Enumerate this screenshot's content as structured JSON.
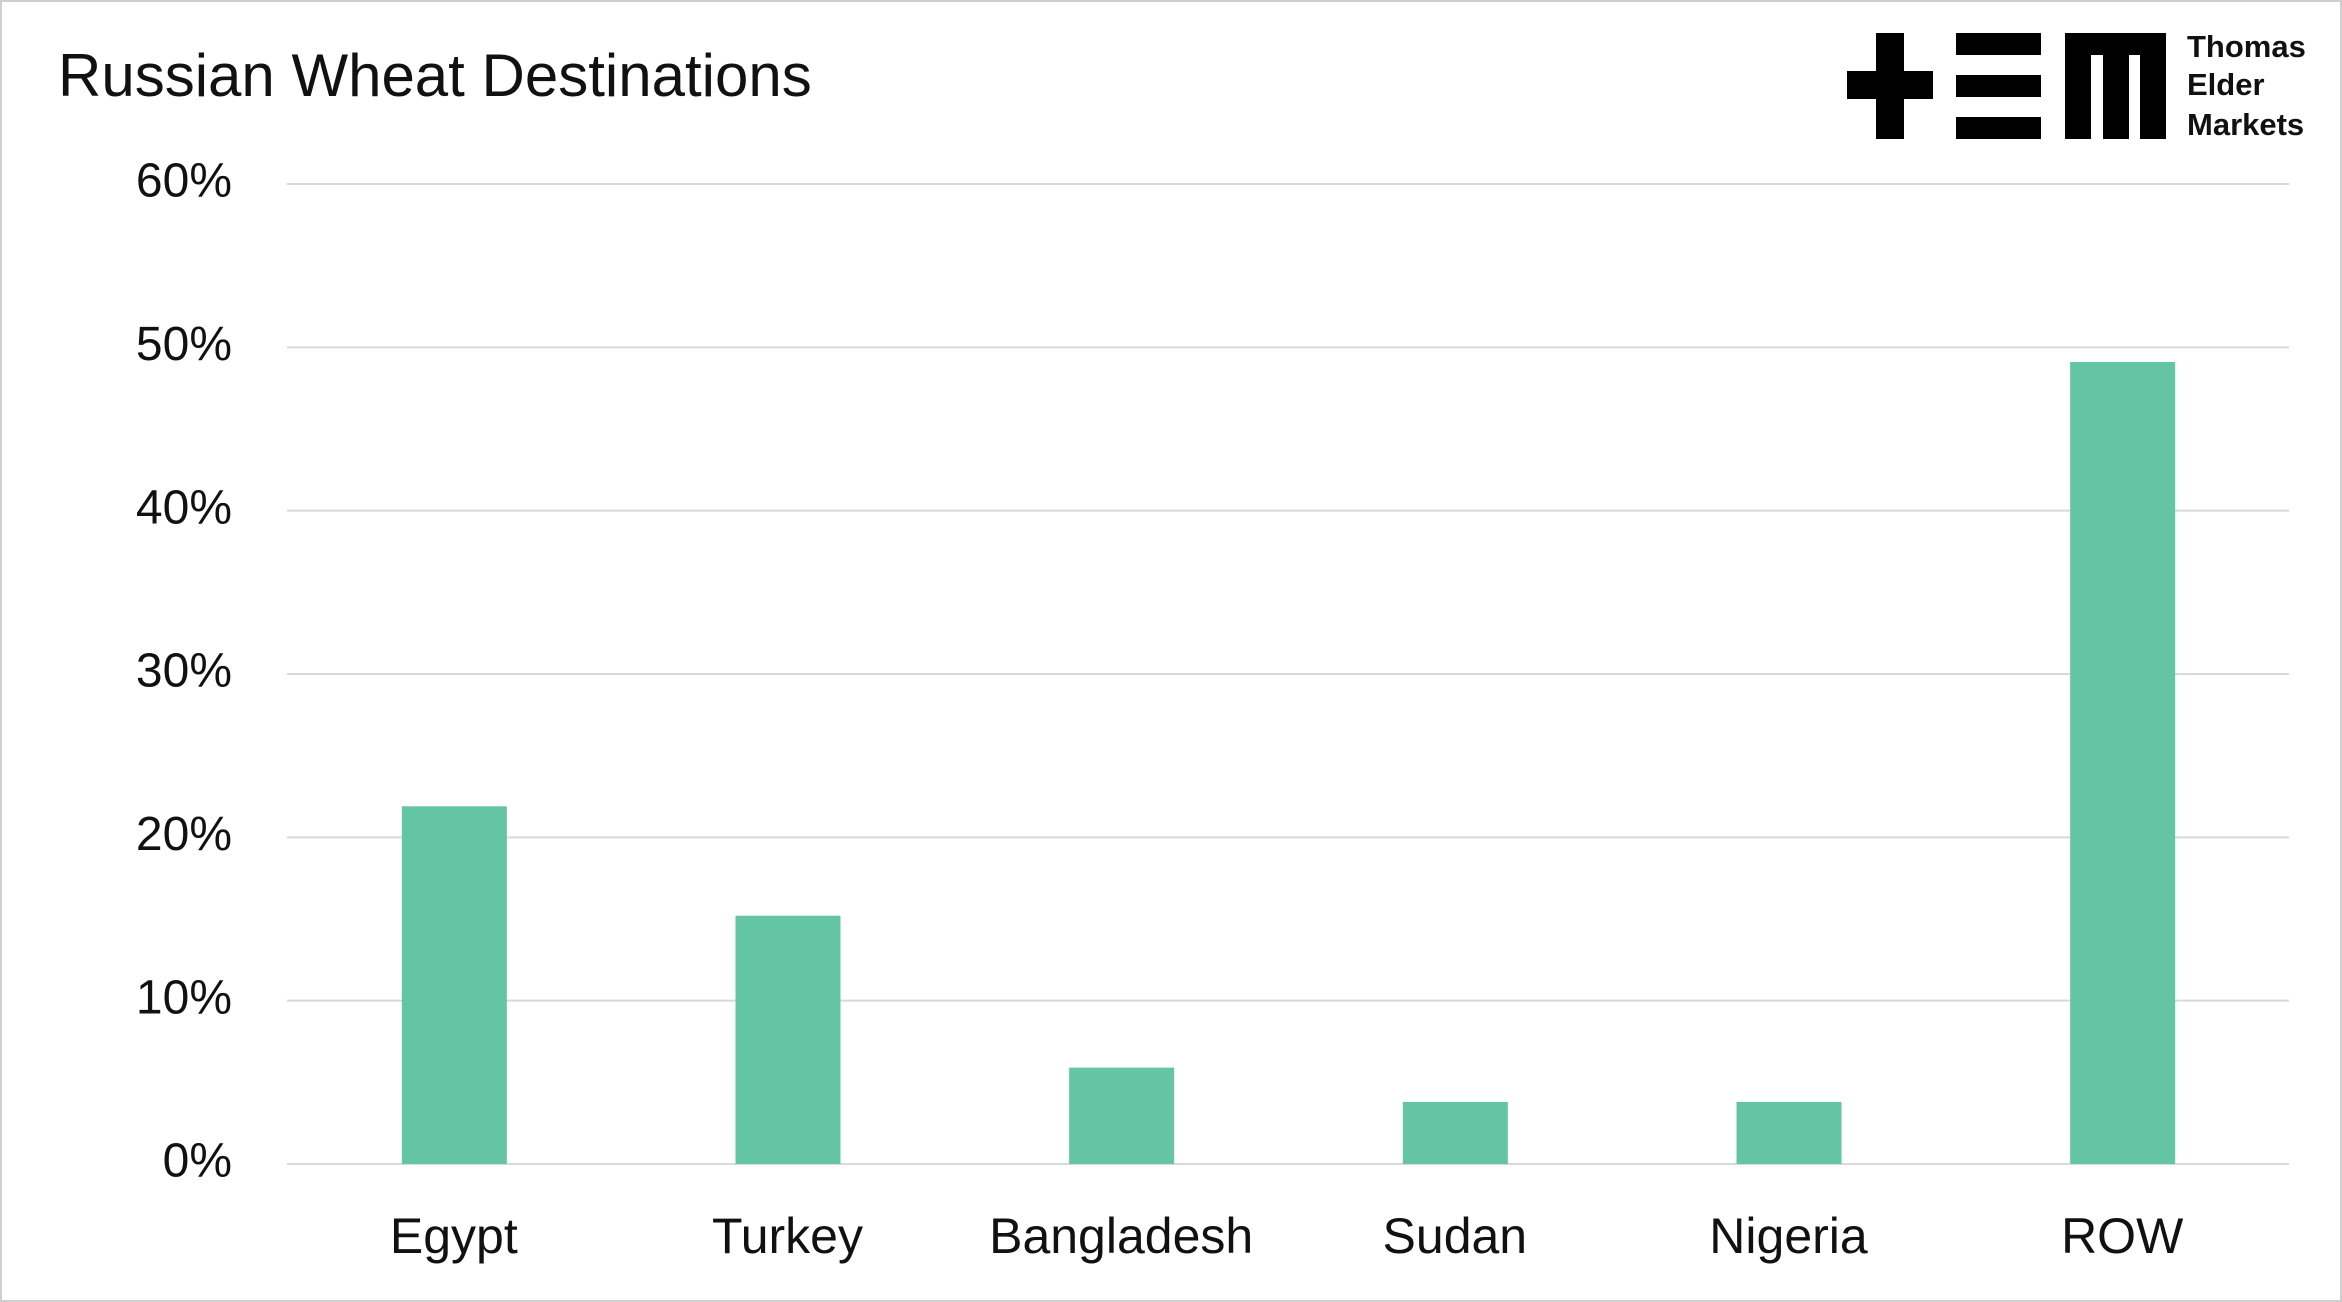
{
  "chart_data": {
    "type": "bar",
    "title": "Russian Wheat Destinations",
    "logo_text": [
      "Thomas",
      "Elder",
      "Markets"
    ],
    "categories": [
      "Egypt",
      "Turkey",
      "Bangladesh",
      "Sudan",
      "Nigeria",
      "ROW"
    ],
    "values": [
      21.9,
      15.2,
      5.9,
      3.8,
      3.8,
      49.1
    ],
    "color": "#64c5a5",
    "ylim": [
      0,
      60
    ],
    "yticks": [
      {
        "value": 0,
        "label": "0%"
      },
      {
        "value": 10,
        "label": "10%"
      },
      {
        "value": 20,
        "label": "20%"
      },
      {
        "value": 30,
        "label": "30%"
      },
      {
        "value": 40,
        "label": "40%"
      },
      {
        "value": 50,
        "label": "50%"
      },
      {
        "value": 60,
        "label": "60%"
      }
    ],
    "grid": true
  }
}
